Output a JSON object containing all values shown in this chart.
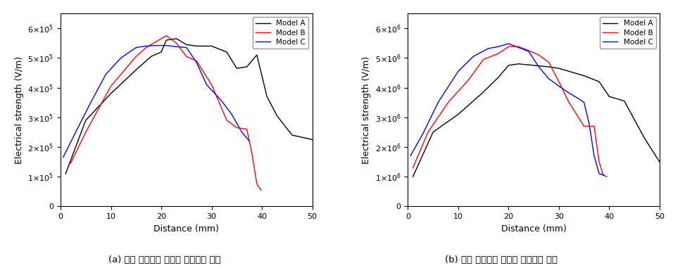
{
  "left_chart": {
    "model_A": {
      "color": "#000000",
      "x": [
        1,
        5,
        10,
        15,
        18,
        20,
        21,
        23,
        25,
        27,
        30,
        33,
        35,
        37,
        39,
        41,
        43,
        46,
        50
      ],
      "y": [
        110000.0,
        290000.0,
        380000.0,
        460000.0,
        505000.0,
        520000.0,
        560000.0,
        565000.0,
        545000.0,
        540000.0,
        540000.0,
        520000.0,
        465000.0,
        470000.0,
        510000.0,
        370000.0,
        305000.0,
        240000.0,
        225000.0
      ]
    },
    "model_B": {
      "color": "#ff0000",
      "x": [
        2,
        5,
        10,
        15,
        17,
        19,
        21,
        23,
        25,
        27,
        30,
        33,
        35,
        37,
        38,
        39,
        39.8
      ],
      "y": [
        145000.0,
        250000.0,
        405000.0,
        505000.0,
        535000.0,
        555000.0,
        575000.0,
        550000.0,
        505000.0,
        490000.0,
        410000.0,
        290000.0,
        265000.0,
        260000.0,
        180000.0,
        75000.0,
        55000.0
      ]
    },
    "model_C": {
      "color": "#0000ff",
      "x": [
        0.5,
        3,
        6,
        9,
        12,
        15,
        17,
        19,
        21,
        23,
        25,
        27,
        29,
        32,
        34,
        36,
        37.5
      ],
      "y": [
        165000.0,
        250000.0,
        350000.0,
        445000.0,
        500000.0,
        535000.0,
        540000.0,
        542000.0,
        542000.0,
        538000.0,
        535000.0,
        485000.0,
        410000.0,
        355000.0,
        310000.0,
        250000.0,
        220000.0
      ]
    }
  },
  "right_chart": {
    "model_A": {
      "color": "#000000",
      "x": [
        1,
        5,
        10,
        15,
        18,
        20,
        22,
        25,
        28,
        30,
        32,
        35,
        38,
        40,
        43,
        47,
        50
      ],
      "y": [
        1000000.0,
        2500000.0,
        3100000.0,
        3850000.0,
        4350000.0,
        4750000.0,
        4800000.0,
        4750000.0,
        4700000.0,
        4650000.0,
        4550000.0,
        4400000.0,
        4200000.0,
        3700000.0,
        3550000.0,
        2300000.0,
        1500000.0
      ]
    },
    "model_B": {
      "color": "#ff0000",
      "x": [
        1,
        4,
        8,
        12,
        15,
        18,
        20,
        22,
        24,
        26,
        28,
        30,
        32,
        35,
        37,
        38,
        38.8,
        39.5
      ],
      "y": [
        1300000.0,
        2500000.0,
        3500000.0,
        4250000.0,
        4950000.0,
        5150000.0,
        5380000.0,
        5380000.0,
        5250000.0,
        5100000.0,
        4850000.0,
        4200000.0,
        3500000.0,
        2700000.0,
        2700000.0,
        1500000.0,
        1050000.0,
        1000000.0
      ]
    },
    "model_C": {
      "color": "#0000ff",
      "x": [
        0.5,
        3,
        6,
        10,
        13,
        16,
        18,
        20,
        22,
        24,
        26,
        28,
        30,
        32,
        34,
        35,
        36,
        37,
        38,
        39
      ],
      "y": [
        1700000.0,
        2450000.0,
        3500000.0,
        4550000.0,
        5050000.0,
        5320000.0,
        5380000.0,
        5480000.0,
        5350000.0,
        5220000.0,
        4700000.0,
        4300000.0,
        4050000.0,
        3820000.0,
        3620000.0,
        3500000.0,
        2800000.0,
        1700000.0,
        1100000.0,
        1050000.0
      ]
    }
  },
  "xlabel": "Distance (mm)",
  "ylabel": "Electrical strength (V/m)",
  "xlim": [
    0,
    50
  ],
  "left_ylim": [
    0,
    650000.0
  ],
  "right_ylim": [
    0,
    6500000.0
  ],
  "left_yticks": [
    0,
    100000.0,
    200000.0,
    300000.0,
    400000.0,
    500000.0,
    600000.0
  ],
  "right_yticks": [
    0,
    1000000.0,
    2000000.0,
    3000000.0,
    4000000.0,
    5000000.0,
    6000000.0
  ],
  "xticks": [
    0,
    10,
    20,
    30,
    40,
    50
  ],
  "legend_labels": [
    "Model A",
    "Model B",
    "Model C"
  ],
  "legend_colors": [
    "#000000",
    "#ff0000",
    "#0000ff"
  ],
  "caption_a": "(a) 좌측 곡면실드 표면의 최대전계 강도",
  "caption_b": "(b) 우측 곡면실드 표면의 최대전계 강도"
}
